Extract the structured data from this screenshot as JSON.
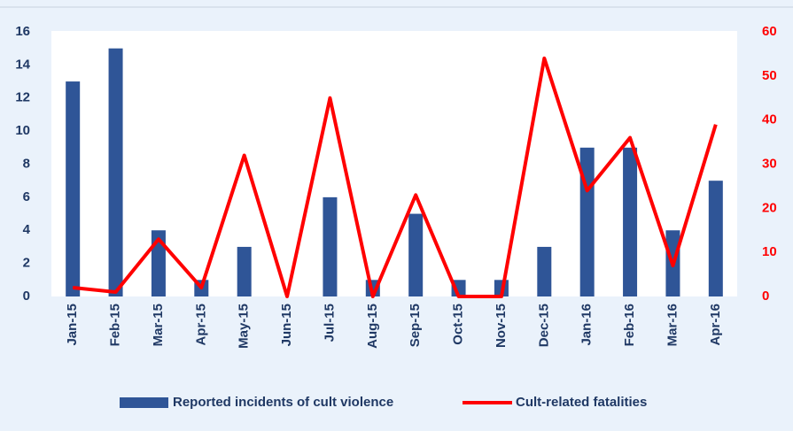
{
  "chart_data": {
    "type": "bar",
    "categories": [
      "Jan-15",
      "Feb-15",
      "Mar-15",
      "Apr-15",
      "May-15",
      "Jun-15",
      "Jul-15",
      "Aug-15",
      "Sep-15",
      "Oct-15",
      "Nov-15",
      "Dec-15",
      "Jan-16",
      "Feb-16",
      "Mar-16",
      "Apr-16"
    ],
    "series": [
      {
        "name": "Reported incidents of cult violence",
        "type": "bar",
        "color": "#2f5597",
        "values": [
          13,
          15,
          4,
          1,
          3,
          0,
          6,
          1,
          5,
          1,
          1,
          3,
          9,
          9,
          4,
          7
        ]
      },
      {
        "name": "Cult-related fatalities",
        "type": "line",
        "axis": "y2",
        "color": "#ff0000",
        "values": [
          2,
          1,
          13,
          2,
          32,
          0,
          45,
          0,
          23,
          0,
          0,
          54,
          24,
          36,
          7,
          39
        ]
      }
    ],
    "ylim": [
      0,
      16
    ],
    "yticks": [
      0,
      2,
      4,
      6,
      8,
      10,
      12,
      14,
      16
    ],
    "y2lim": [
      0,
      60
    ],
    "y2ticks": [
      0,
      10,
      20,
      30,
      40,
      50,
      60
    ],
    "legend": "bottom"
  }
}
